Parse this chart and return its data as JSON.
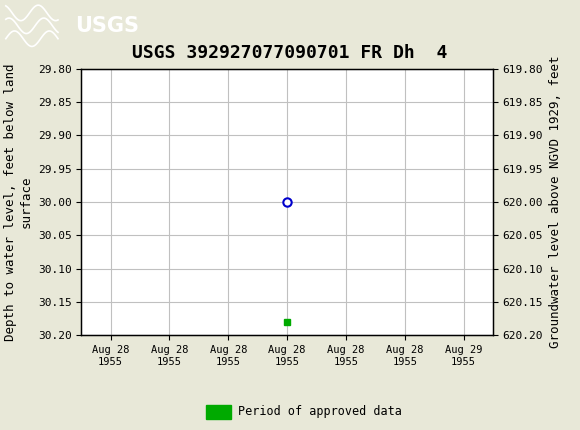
{
  "title": "USGS 392927077090701 FR Dh  4",
  "title_fontsize": 13,
  "header_color": "#1a6e3c",
  "bg_color": "#e8e8d8",
  "plot_bg_color": "#ffffff",
  "left_ylabel": "Depth to water level, feet below land\nsurface",
  "right_ylabel": "Groundwater level above NGVD 1929, feet",
  "ylabel_fontsize": 9,
  "ylim_left": [
    29.8,
    30.2
  ],
  "ylim_right": [
    619.8,
    620.2
  ],
  "left_yticks": [
    29.8,
    29.85,
    29.9,
    29.95,
    30.0,
    30.05,
    30.1,
    30.15,
    30.2
  ],
  "right_yticks": [
    619.8,
    619.85,
    619.9,
    619.95,
    620.0,
    620.05,
    620.1,
    620.15,
    620.2
  ],
  "grid_color": "#c0c0c0",
  "data_point_x": 3.0,
  "data_point_y": 30.0,
  "data_point_color": "#0000cc",
  "data_point_marker": "o",
  "data_point_markersize": 6,
  "green_square_x": 3.0,
  "green_square_y": 30.18,
  "green_square_color": "#00aa00",
  "xtick_labels": [
    "Aug 28\n1955",
    "Aug 28\n1955",
    "Aug 28\n1955",
    "Aug 28\n1955",
    "Aug 28\n1955",
    "Aug 28\n1955",
    "Aug 29\n1955"
  ],
  "xtick_positions": [
    0,
    1,
    2,
    3,
    4,
    5,
    6
  ],
  "legend_label": "Period of approved data",
  "legend_color": "#00aa00",
  "font_family": "monospace"
}
